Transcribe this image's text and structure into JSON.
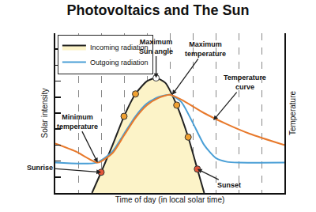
{
  "chart_data": {
    "type": "line",
    "title": "Photovoltaics and The Sun",
    "x_label": "Time of day (in local solar time)",
    "y_label": "Solar intensity",
    "y2_label": "Temperature",
    "xlim": [
      0,
      10
    ],
    "xticks": [
      1,
      2,
      3,
      4,
      5,
      6,
      7,
      8,
      9
    ],
    "ylim": [
      0,
      10
    ],
    "yticks": [
      1,
      2,
      3,
      4,
      5,
      6,
      7,
      8,
      9
    ],
    "y2lim": [
      0,
      10
    ],
    "grid": true,
    "tick_labels": false,
    "legend": "upper left",
    "series": [
      {
        "name": "Incoming radiation",
        "type": "area",
        "color": "#fcf3c8",
        "x": [
          1.6,
          2.0,
          2.5,
          3.0,
          3.5,
          4.0,
          4.4,
          4.8,
          5.3,
          5.8,
          6.2,
          6.5
        ],
        "values": [
          0,
          1.3,
          3.0,
          4.8,
          6.2,
          7.0,
          7.2,
          6.9,
          5.5,
          3.5,
          1.5,
          0
        ]
      },
      {
        "name": "Outgoing radiation",
        "type": "line",
        "color": "#4a9fd6",
        "x": [
          0,
          1.8,
          2.5,
          3.0,
          3.5,
          4.0,
          4.5,
          5.0,
          5.5,
          6.0,
          6.5,
          7.0,
          7.5,
          8.0,
          10
        ],
        "values": [
          1.9,
          1.9,
          2.6,
          3.7,
          4.8,
          5.6,
          6.0,
          6.15,
          5.7,
          4.4,
          3.0,
          2.2,
          1.95,
          1.9,
          1.9
        ]
      },
      {
        "type": "line",
        "color": "#e8792b",
        "axis": "y2",
        "x": [
          0,
          0.9,
          1.85,
          2.5,
          3.0,
          3.5,
          4.0,
          4.5,
          5.0,
          5.5,
          6.5,
          7.5,
          8.5,
          10
        ],
        "values": [
          3.1,
          2.6,
          1.9,
          2.5,
          3.6,
          4.7,
          5.5,
          5.95,
          6.15,
          5.85,
          5.0,
          4.3,
          3.7,
          3.0
        ]
      },
      {
        "type": "markers",
        "colors": [
          "#e2553a",
          "#f0a030",
          "#f0a030",
          "#ffffff",
          "#f0a030",
          "#f0a030",
          "#e2553a"
        ],
        "x": [
          2.0,
          3.0,
          3.5,
          4.4,
          5.3,
          5.8,
          6.2
        ],
        "values": [
          1.3,
          4.8,
          6.2,
          7.2,
          5.5,
          3.5,
          1.5
        ]
      }
    ],
    "annotations": [
      {
        "text": [
          "Maximum",
          "Sun angle"
        ],
        "x": 4.4,
        "y": 7.2
      },
      {
        "text": [
          "Maximum",
          "temperature"
        ],
        "x": 5.1,
        "y": 6.15
      },
      {
        "text": [
          "Temperature",
          "curve"
        ],
        "x": 6.9,
        "y": 4.55
      },
      {
        "text": [
          "Minimum",
          "temperature"
        ],
        "x": 1.85,
        "y": 1.9
      },
      {
        "text": [
          "Sunrise"
        ],
        "x": 2.0,
        "y": 1.3
      },
      {
        "text": [
          "Sunset"
        ],
        "x": 6.2,
        "y": 1.5
      }
    ]
  }
}
